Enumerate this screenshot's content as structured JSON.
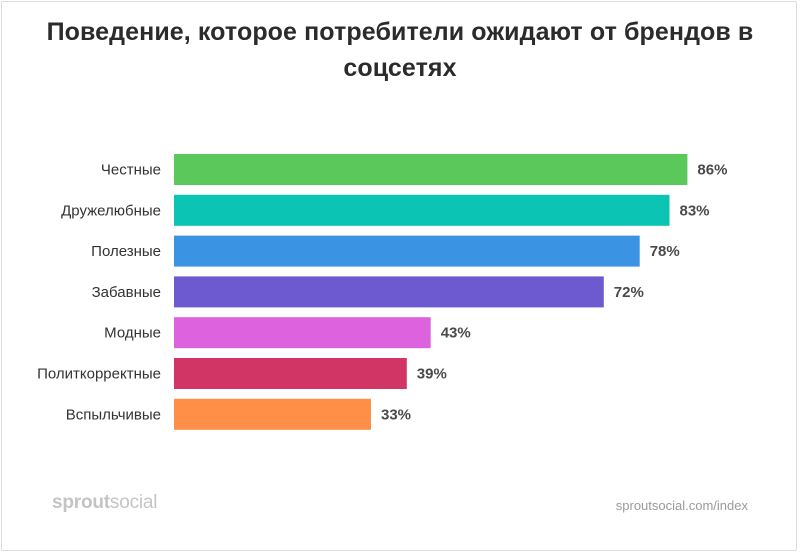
{
  "chart_data": {
    "type": "bar",
    "orientation": "horizontal",
    "title": "Поведение, которое потребители ожидают от брендов в соцсетях",
    "categories": [
      "Честные",
      "Дружелюбные",
      "Полезные",
      "Забавные",
      "Модные",
      "Политкорректные",
      "Вспыльчивые"
    ],
    "values": [
      86,
      83,
      78,
      72,
      43,
      39,
      33
    ],
    "value_labels": [
      "86%",
      "83%",
      "78%",
      "72%",
      "43%",
      "39%",
      "33%"
    ],
    "unit": "%",
    "xlim": [
      0,
      100
    ],
    "colors": [
      "#5ac85a",
      "#0cc4b4",
      "#3b93e3",
      "#6d5ad1",
      "#dc63dd",
      "#d13566",
      "#ff8f46"
    ],
    "grid": false,
    "legend": "none"
  },
  "footer": {
    "brand_part1": "sprout",
    "brand_part2": "social",
    "source": "sproutsocial.com/index"
  }
}
